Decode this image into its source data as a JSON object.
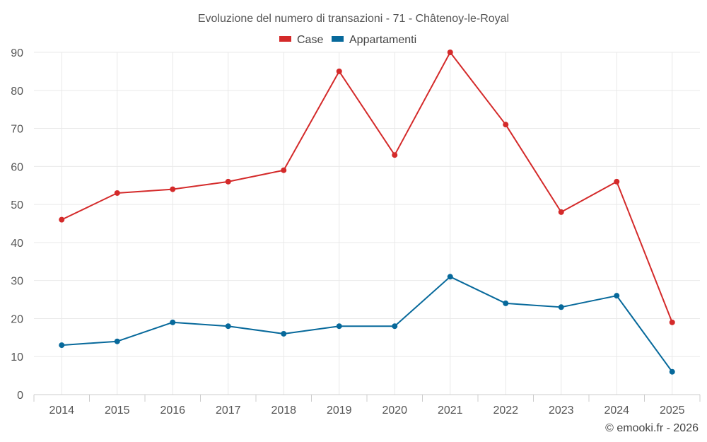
{
  "chart_data": {
    "type": "line",
    "title": "Evoluzione del numero di transazioni - 71 - Châtenoy-le-Royal",
    "categories": [
      "2014",
      "2015",
      "2016",
      "2017",
      "2018",
      "2019",
      "2020",
      "2021",
      "2022",
      "2023",
      "2024",
      "2025"
    ],
    "series": [
      {
        "name": "Case",
        "color": "#d42a2a",
        "values": [
          46,
          53,
          54,
          56,
          59,
          85,
          63,
          90,
          71,
          48,
          56,
          19
        ]
      },
      {
        "name": "Appartamenti",
        "color": "#07699b",
        "values": [
          13,
          14,
          19,
          18,
          16,
          18,
          18,
          31,
          24,
          23,
          26,
          6
        ]
      }
    ],
    "ylim": [
      0,
      90
    ],
    "yticks": [
      0,
      10,
      20,
      30,
      40,
      50,
      60,
      70,
      80,
      90
    ],
    "xlabel": "",
    "ylabel": "",
    "grid": true,
    "legend_position": "top-center"
  },
  "credit": "© emooki.fr - 2026"
}
